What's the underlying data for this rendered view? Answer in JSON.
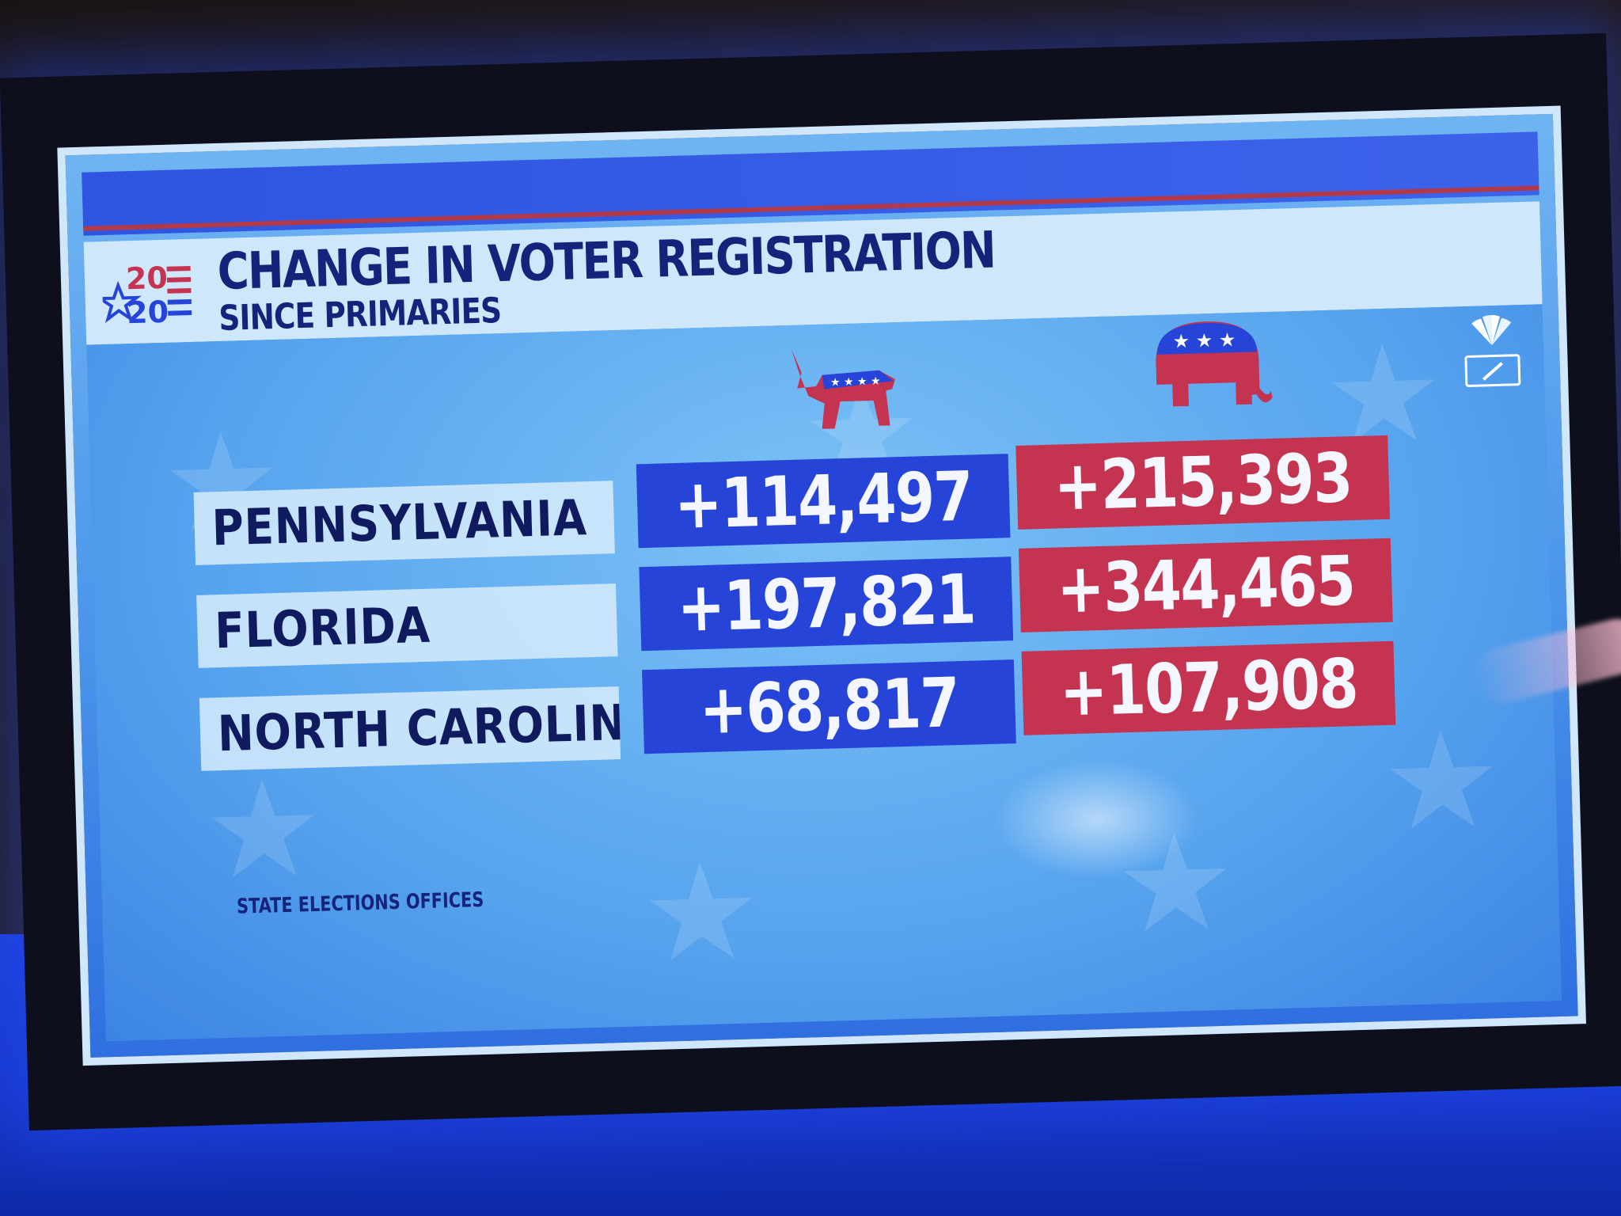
{
  "graphic": {
    "logo": {
      "top": "20",
      "bottom": "20"
    },
    "title": "CHANGE IN VOTER REGISTRATION",
    "subtitle": "SINCE PRIMARIES",
    "parties": [
      {
        "icon": "donkey-icon",
        "color": "#2744d8"
      },
      {
        "icon": "elephant-icon",
        "color": "#c43350"
      }
    ],
    "rows": [
      {
        "state": "PENNSYLVANIA",
        "dem": "+114,497",
        "rep": "+215,393"
      },
      {
        "state": "FLORIDA",
        "dem": "+197,821",
        "rep": "+344,465"
      },
      {
        "state": "NORTH CAROLINA",
        "dem": "+68,817",
        "rep": "+107,908"
      }
    ],
    "source": "STATE ELECTIONS OFFICES"
  },
  "colors": {
    "navy_text": "#16237a",
    "dem_blue": "#2744d8",
    "rep_red": "#c43350",
    "accent_stripe": "#b23a48"
  }
}
